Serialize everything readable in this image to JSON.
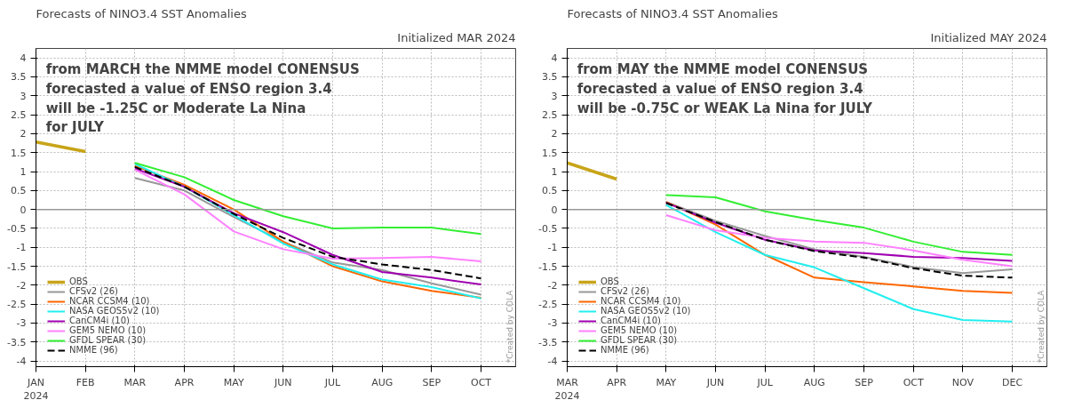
{
  "chart_data": [
    {
      "type": "line",
      "title": "Forecasts of NINO3.4 SST Anomalies",
      "subtitle": "Initialized MAR 2024",
      "categories": [
        "JAN\n2024",
        "FEB",
        "MAR",
        "APR",
        "MAY",
        "JUN",
        "JUL",
        "AUG",
        "SEP",
        "OCT"
      ],
      "ylim": [
        -4.15,
        4.25
      ],
      "yticks": [
        -4,
        -3.5,
        -3,
        -2.5,
        -2,
        -1.5,
        -1,
        -0.5,
        0,
        0.5,
        1,
        1.5,
        2,
        2.5,
        3,
        3.5,
        4
      ],
      "grid": true,
      "legend": "bottom left",
      "ref_lines": [
        {
          "axis": "y",
          "value": 0,
          "color": "#999999"
        }
      ],
      "series": [
        {
          "name": "OBS",
          "color": "#c8a418",
          "values": [
            1.78,
            1.53,
            null,
            null,
            null,
            null,
            null,
            null,
            null,
            null
          ]
        },
        {
          "name": "CFSv2 (26)",
          "color": "#999999",
          "values": [
            null,
            null,
            0.83,
            0.5,
            -0.2,
            -0.85,
            -1.4,
            -1.6,
            -1.95,
            -2.25
          ]
        },
        {
          "name": "NCAR CCSM4 (10)",
          "color": "#ff6600",
          "values": [
            null,
            null,
            1.15,
            0.65,
            0.0,
            -0.85,
            -1.5,
            -1.9,
            -2.15,
            -2.33
          ]
        },
        {
          "name": "NASA GEOS5v2 (10)",
          "color": "#22eeee",
          "values": [
            null,
            null,
            1.2,
            0.6,
            -0.15,
            -0.9,
            -1.45,
            -1.85,
            -2.05,
            -2.35
          ]
        },
        {
          "name": "CanCM4i (10)",
          "color": "#a000b0",
          "values": [
            null,
            null,
            1.08,
            0.6,
            -0.1,
            -0.6,
            -1.2,
            -1.65,
            -1.8,
            -1.98
          ]
        },
        {
          "name": "GEM5 NEMO (10)",
          "color": "#ff80ff",
          "values": [
            null,
            null,
            1.05,
            0.4,
            -0.58,
            -1.05,
            -1.3,
            -1.28,
            -1.25,
            -1.37
          ]
        },
        {
          "name": "GFDL SPEAR (30)",
          "color": "#33ee33",
          "values": [
            null,
            null,
            1.23,
            0.85,
            0.25,
            -0.18,
            -0.5,
            -0.48,
            -0.48,
            -0.65
          ]
        },
        {
          "name": "NMME (96)",
          "color": "#000000",
          "line_style": "dashed",
          "values": [
            null,
            null,
            1.12,
            0.6,
            -0.12,
            -0.75,
            -1.25,
            -1.45,
            -1.6,
            -1.82
          ]
        }
      ],
      "annotations": [
        {
          "text": "from MARCH the NMME model CONENSUS\nforecasted a value of  ENSO region 3.4\n will be  -1.25C or Moderate La Nina\n for JULY"
        },
        "*Created by COLA"
      ]
    },
    {
      "type": "line",
      "title": "Forecasts of NINO3.4 SST Anomalies",
      "subtitle": "Initialized MAY 2024",
      "categories": [
        "MAR\n2024",
        "APR",
        "MAY",
        "JUN",
        "JUL",
        "AUG",
        "SEP",
        "OCT",
        "NOV",
        "DEC"
      ],
      "ylim": [
        -4.15,
        4.25
      ],
      "yticks": [
        -4,
        -3.5,
        -3,
        -2.5,
        -2,
        -1.5,
        -1,
        -0.5,
        0,
        0.5,
        1,
        1.5,
        2,
        2.5,
        3,
        3.5,
        4
      ],
      "grid": true,
      "legend": "bottom left",
      "ref_lines": [
        {
          "axis": "y",
          "value": 0,
          "color": "#999999"
        }
      ],
      "series": [
        {
          "name": "OBS",
          "color": "#c8a418",
          "values": [
            1.23,
            0.8,
            null,
            null,
            null,
            null,
            null,
            null,
            null,
            null
          ]
        },
        {
          "name": "CFSv2 (26)",
          "color": "#999999",
          "values": [
            null,
            null,
            0.2,
            -0.3,
            -0.7,
            -1.05,
            -1.25,
            -1.52,
            -1.68,
            -1.58
          ]
        },
        {
          "name": "NCAR CCSM4 (10)",
          "color": "#ff6600",
          "values": [
            null,
            null,
            0.2,
            -0.4,
            -1.2,
            -1.8,
            -1.92,
            -2.03,
            -2.15,
            -2.2
          ]
        },
        {
          "name": "NASA GEOS5v2 (10)",
          "color": "#22eeee",
          "values": [
            null,
            null,
            0.12,
            -0.6,
            -1.2,
            -1.53,
            -2.08,
            -2.63,
            -2.92,
            -2.96
          ]
        },
        {
          "name": "CanCM4i (10)",
          "color": "#a000b0",
          "values": [
            null,
            null,
            0.18,
            -0.35,
            -0.8,
            -1.08,
            -1.15,
            -1.25,
            -1.28,
            -1.36
          ]
        },
        {
          "name": "GEM5 NEMO (10)",
          "color": "#ff80ff",
          "values": [
            null,
            null,
            -0.15,
            -0.55,
            -0.75,
            -0.85,
            -0.88,
            -1.08,
            -1.33,
            -1.5
          ]
        },
        {
          "name": "GFDL SPEAR (30)",
          "color": "#33ee33",
          "values": [
            null,
            null,
            0.38,
            0.32,
            -0.05,
            -0.28,
            -0.48,
            -0.85,
            -1.12,
            -1.2
          ]
        },
        {
          "name": "NMME (96)",
          "color": "#000000",
          "line_style": "dashed",
          "values": [
            null,
            null,
            0.17,
            -0.33,
            -0.8,
            -1.1,
            -1.27,
            -1.55,
            -1.75,
            -1.8
          ]
        }
      ],
      "annotations": [
        {
          "text": "from MAY the NMME model CONENSUS\nforecasted a value of  ENSO region 3.4\n will be  -0.75C or WEAK La Nina for JULY"
        },
        "*Created by COLA"
      ]
    }
  ]
}
